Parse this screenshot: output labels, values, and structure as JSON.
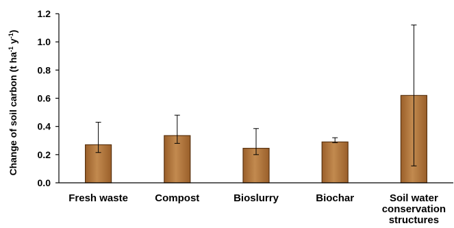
{
  "chart_data": {
    "type": "bar",
    "categories": [
      "Fresh waste",
      "Compost",
      "Bioslurry",
      "Biochar",
      "Soil water conservation structures"
    ],
    "category_lines": [
      [
        "Fresh waste"
      ],
      [
        "Compost"
      ],
      [
        "Bioslurry"
      ],
      [
        "Biochar"
      ],
      [
        "Soil water",
        "conservation",
        "structures"
      ]
    ],
    "values": [
      0.27,
      0.335,
      0.245,
      0.29,
      0.62
    ],
    "error_low": [
      0.215,
      0.28,
      0.2,
      0.285,
      0.12
    ],
    "error_high": [
      0.43,
      0.48,
      0.385,
      0.32,
      1.12
    ],
    "ylabel": {
      "prefix": "Change of soil carbon (t ha",
      "exp1": "-1",
      "middle": " y",
      "exp2": "-1",
      "suffix": ")"
    },
    "ylim": [
      0,
      1.2
    ],
    "yticks": [
      "0.0",
      "0.2",
      "0.4",
      "0.6",
      "0.8",
      "1.0",
      "1.2"
    ],
    "bar_color": "#9a5f2a",
    "bar_highlight": "#c28a4f",
    "grid": false,
    "legend": "none"
  }
}
